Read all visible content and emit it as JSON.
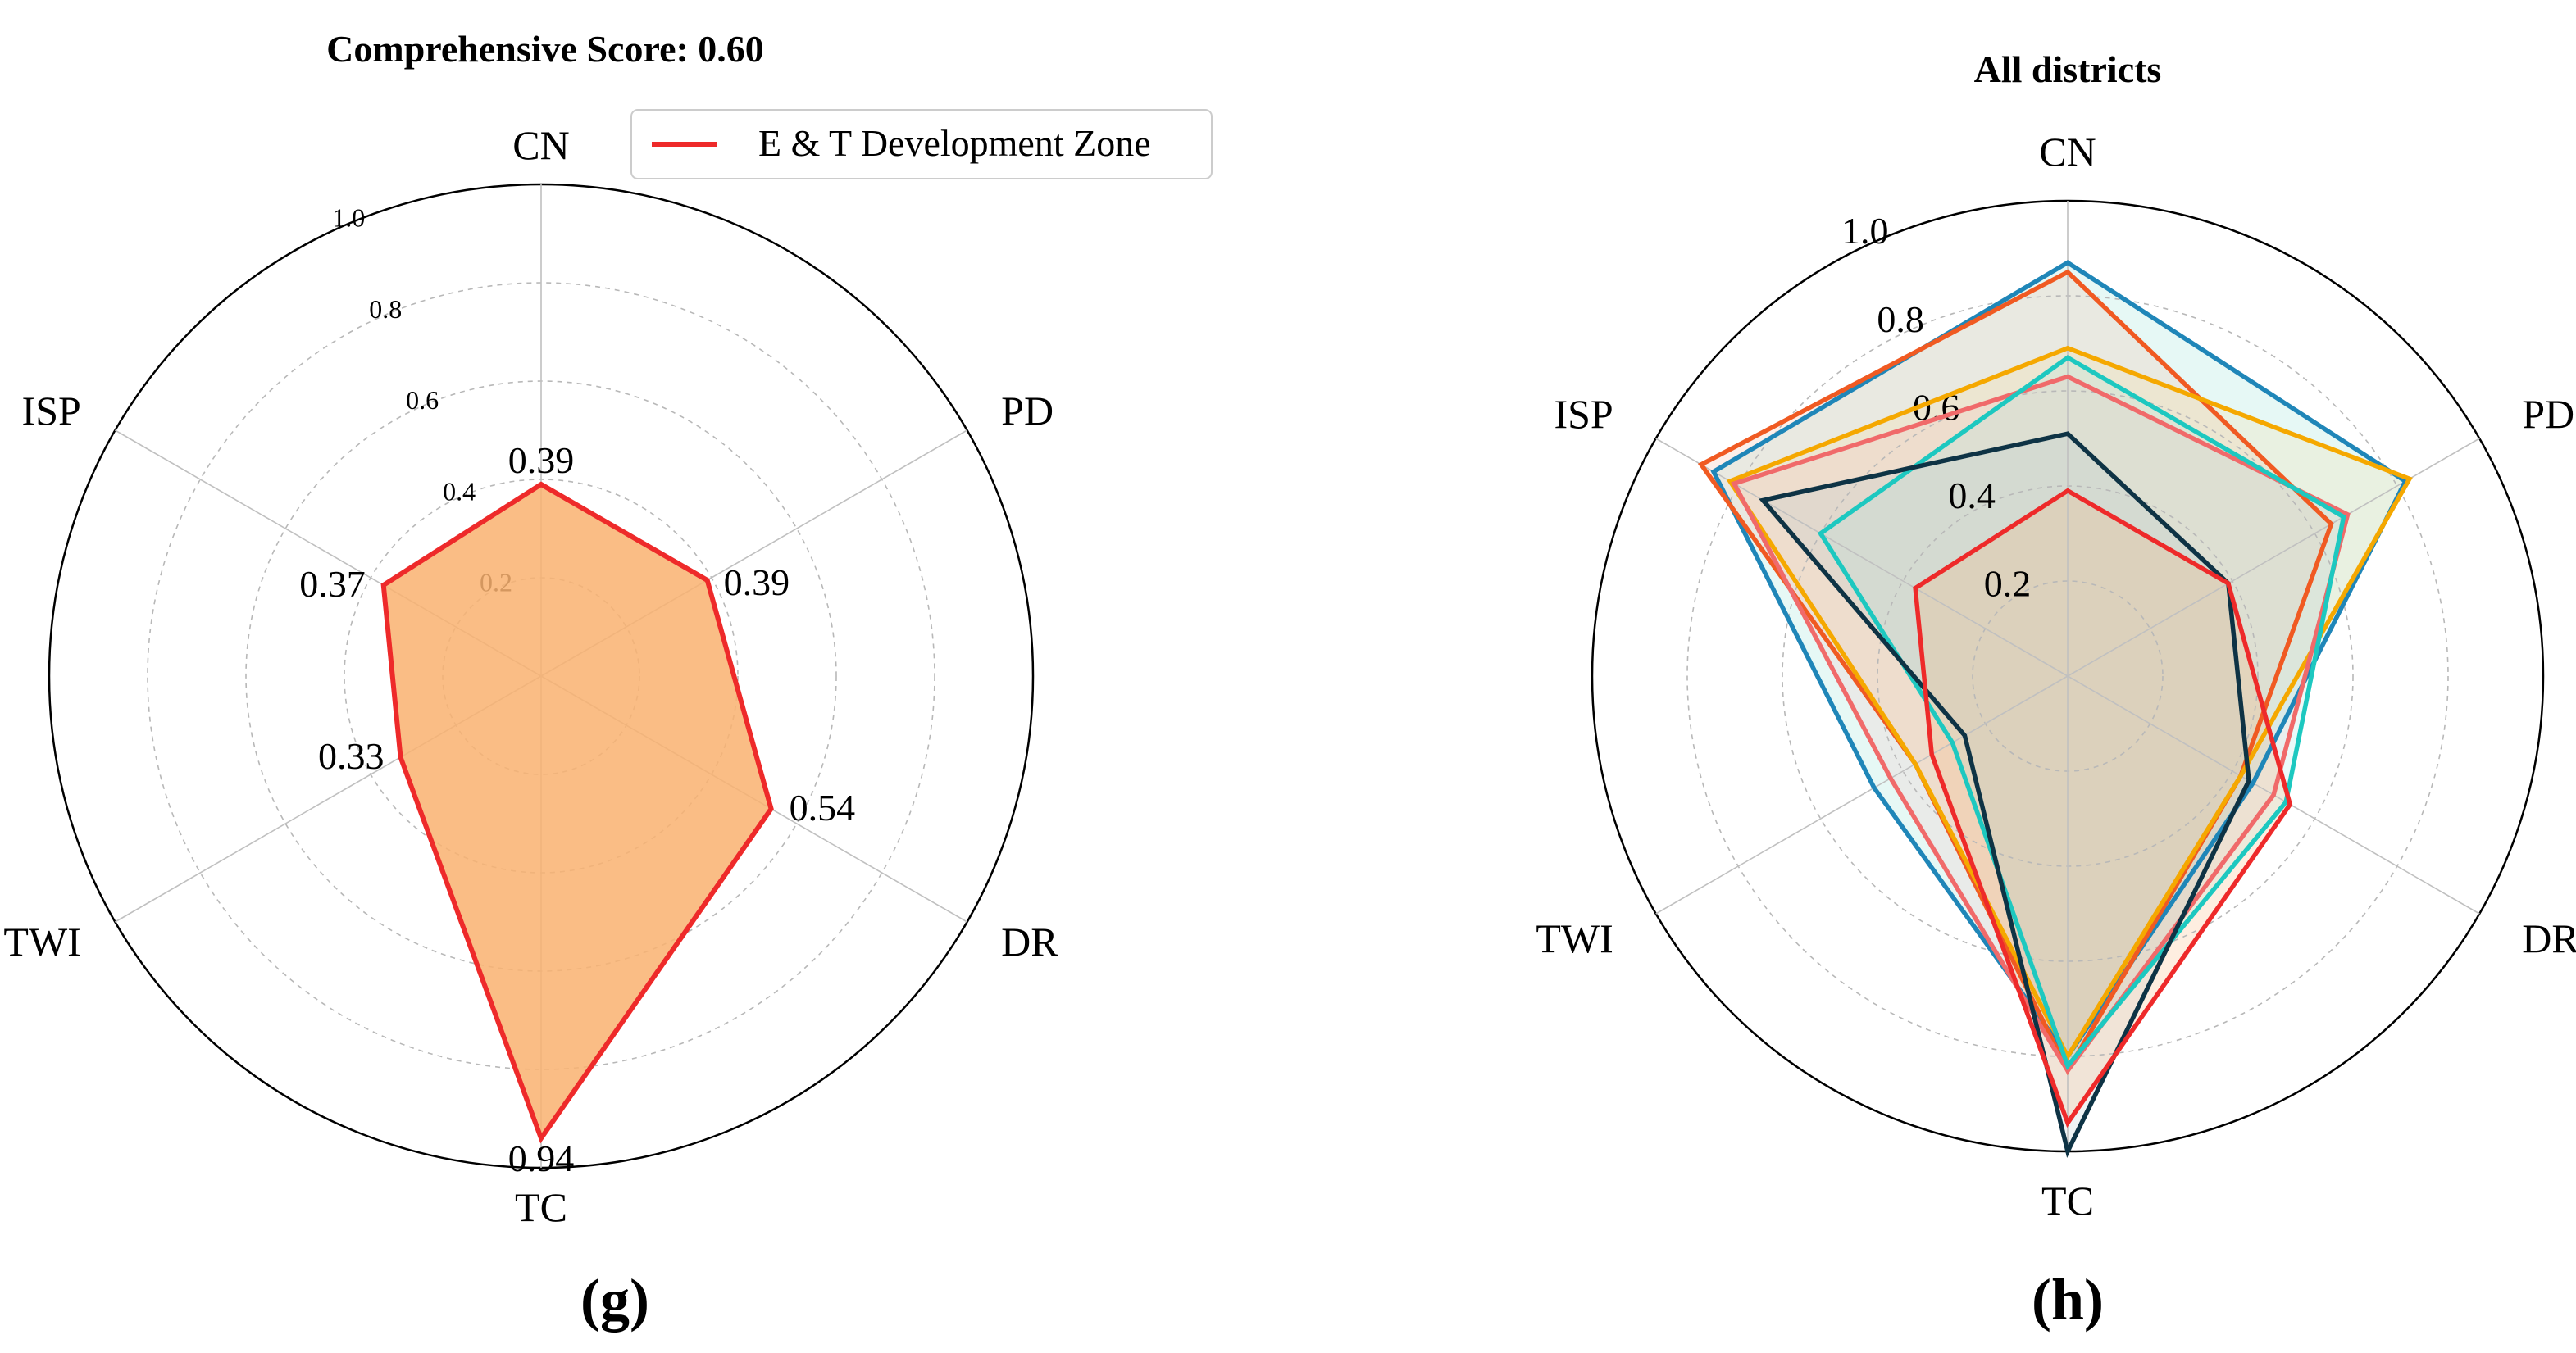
{
  "panels": {
    "g": {
      "title": "Comprehensive Score: 0.60",
      "letter": "(g)"
    },
    "h": {
      "title": "All districts",
      "letter": "(h)"
    }
  },
  "legend": {
    "label": "E & T Development Zone",
    "color": "#ee2a2a"
  },
  "chart_data": [
    {
      "type": "radar",
      "title": "Comprehensive Score: 0.60",
      "categories": [
        "CN",
        "PD",
        "DR",
        "TC",
        "TWI",
        "ISP"
      ],
      "rlim": [
        0,
        1.0
      ],
      "rticks": [
        "0.2",
        "0.4",
        "0.6",
        "0.8",
        "1.0"
      ],
      "legend": "top-right",
      "series": [
        {
          "name": "E & T Development Zone",
          "values": [
            0.39,
            0.39,
            0.54,
            0.94,
            0.33,
            0.37
          ],
          "value_labels": [
            "0.39",
            "0.39",
            "0.54",
            "0.94",
            "0.33",
            "0.37"
          ],
          "line_color": "#ee2a2a",
          "fill_color": "#f9b170"
        }
      ]
    },
    {
      "type": "radar",
      "title": "All districts",
      "categories": [
        "CN",
        "PD",
        "DR",
        "TC",
        "TWI",
        "ISP"
      ],
      "rlim": [
        0,
        1.0
      ],
      "rticks": [
        "0.2",
        "0.4",
        "0.6",
        "0.8",
        "1.0"
      ],
      "series": [
        {
          "values": [
            0.87,
            0.82,
            0.45,
            0.8,
            0.47,
            0.86
          ],
          "line_color": "#1f86b8",
          "fill_color": "#8fe0d0"
        },
        {
          "values": [
            0.85,
            0.64,
            0.42,
            0.83,
            0.37,
            0.89
          ],
          "line_color": "#f05a22",
          "fill_color": "#f7b89a"
        },
        {
          "values": [
            0.69,
            0.83,
            0.42,
            0.8,
            0.37,
            0.82
          ],
          "line_color": "#f5a800",
          "fill_color": "#f6dc99"
        },
        {
          "values": [
            0.63,
            0.68,
            0.5,
            0.83,
            0.43,
            0.81
          ],
          "line_color": "#f06a6a",
          "fill_color": "#f7c1c1"
        },
        {
          "values": [
            0.67,
            0.67,
            0.53,
            0.82,
            0.28,
            0.6
          ],
          "line_color": "#1dc8c0",
          "fill_color": "#a6e8e2"
        },
        {
          "values": [
            0.51,
            0.39,
            0.44,
            1.0,
            0.25,
            0.74
          ],
          "line_color": "#0e3345",
          "fill_color": "#b8c7cc"
        },
        {
          "values": [
            0.39,
            0.39,
            0.54,
            0.94,
            0.33,
            0.37
          ],
          "line_color": "#ee2a2a",
          "fill_color": "#f9b170"
        }
      ]
    }
  ]
}
